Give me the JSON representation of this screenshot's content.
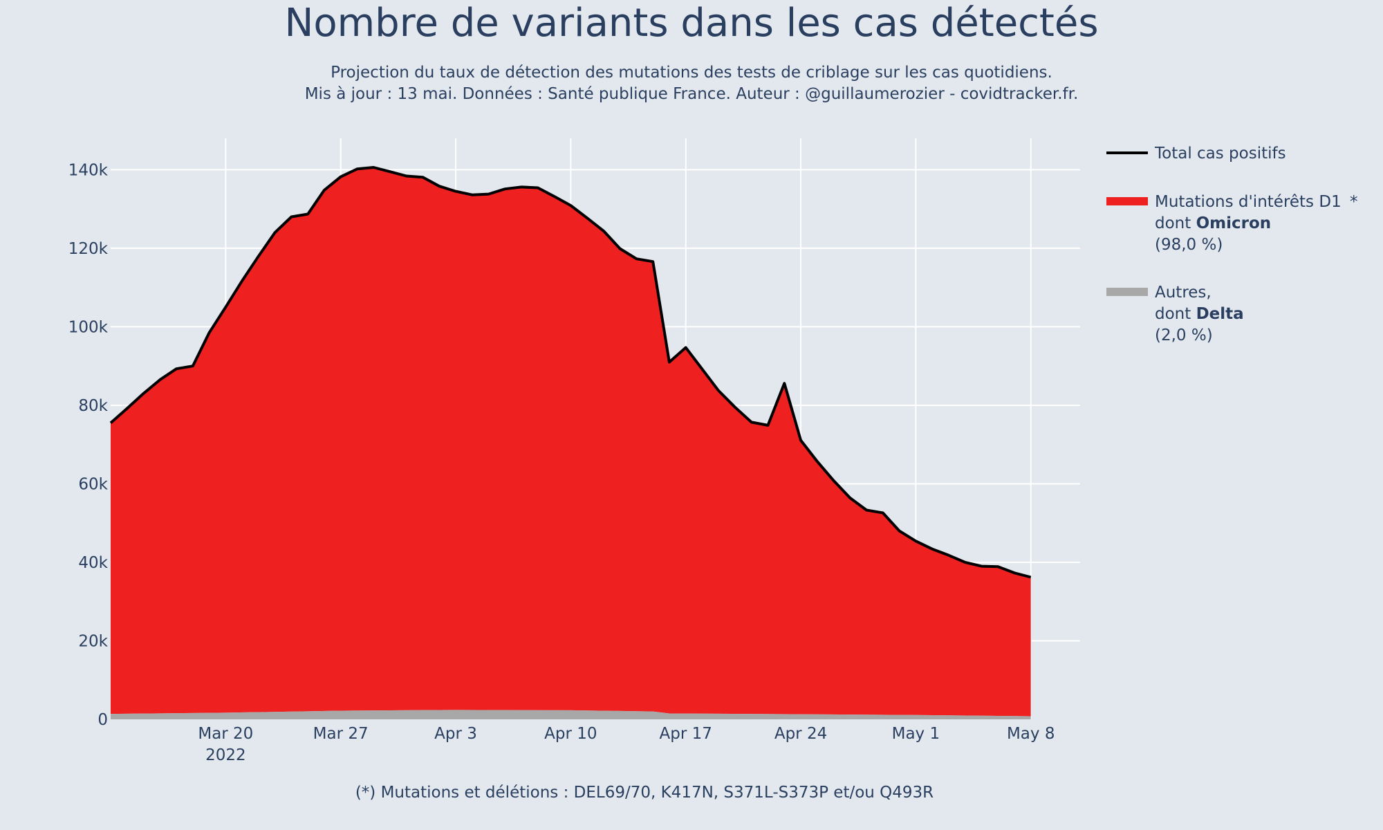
{
  "chart_data": {
    "type": "area",
    "title": "Nombre de variants dans les cas détectés",
    "subtitle": [
      "Projection du taux de détection des mutations des tests de criblage sur les cas quotidiens.",
      "Mis à jour : 13 mai. Données : Santé publique France. Auteur : @guillaumerozier - covidtracker.fr."
    ],
    "footnote": "(*) Mutations et délétions : DEL69/70, K417N, S371L-S373P et/ou Q493R",
    "xaxis": {
      "range": [
        "2022-03-13",
        "2022-05-11"
      ],
      "ticks": [
        {
          "date": "2022-03-20",
          "label": "Mar 20",
          "sublabel": "2022"
        },
        {
          "date": "2022-03-27",
          "label": "Mar 27",
          "sublabel": ""
        },
        {
          "date": "2022-04-03",
          "label": "Apr 3",
          "sublabel": ""
        },
        {
          "date": "2022-04-10",
          "label": "Apr 10",
          "sublabel": ""
        },
        {
          "date": "2022-04-17",
          "label": "Apr 17",
          "sublabel": ""
        },
        {
          "date": "2022-04-24",
          "label": "Apr 24",
          "sublabel": ""
        },
        {
          "date": "2022-05-01",
          "label": "May 1",
          "sublabel": ""
        },
        {
          "date": "2022-05-08",
          "label": "May 8",
          "sublabel": ""
        }
      ]
    },
    "yaxis": {
      "range": [
        0,
        148000
      ],
      "ticks": [
        {
          "value": 0,
          "label": "0"
        },
        {
          "value": 20000,
          "label": "20k"
        },
        {
          "value": 40000,
          "label": "40k"
        },
        {
          "value": 60000,
          "label": "60k"
        },
        {
          "value": 80000,
          "label": "80k"
        },
        {
          "value": 100000,
          "label": "100k"
        },
        {
          "value": 120000,
          "label": "120k"
        },
        {
          "value": 140000,
          "label": "140k"
        }
      ]
    },
    "grid": true,
    "legend_position": "right",
    "legend": [
      {
        "key": "total",
        "color": "#000000",
        "symbol": "line",
        "lines": [
          [
            {
              "t": "Total cas positifs",
              "b": false
            }
          ]
        ]
      },
      {
        "key": "omicron",
        "color": "#ef2020",
        "symbol": "bar",
        "asterisk": "*",
        "lines": [
          [
            {
              "t": "Mutations d'intérêts D1",
              "b": false
            }
          ],
          [
            {
              "t": "dont ",
              "b": false
            },
            {
              "t": "Omicron",
              "b": true
            }
          ],
          [
            {
              "t": " (98,0 %)",
              "b": false
            }
          ]
        ]
      },
      {
        "key": "autres",
        "color": "#a8a8a8",
        "symbol": "bar",
        "lines": [
          [
            {
              "t": "Autres,",
              "b": false
            }
          ],
          [
            {
              "t": "dont ",
              "b": false
            },
            {
              "t": "Delta",
              "b": true
            }
          ],
          [
            {
              "t": " (2,0 %)",
              "b": false
            }
          ]
        ]
      }
    ],
    "series": [
      {
        "key": "total",
        "name": "Total cas positifs",
        "color": "#000000",
        "points": [
          [
            "2022-03-13",
            75500
          ],
          [
            "2022-03-14",
            79200
          ],
          [
            "2022-03-15",
            83000
          ],
          [
            "2022-03-16",
            86500
          ],
          [
            "2022-03-17",
            89300
          ],
          [
            "2022-03-18",
            90000
          ],
          [
            "2022-03-19",
            98500
          ],
          [
            "2022-03-20",
            105000
          ],
          [
            "2022-03-21",
            111700
          ],
          [
            "2022-03-22",
            118000
          ],
          [
            "2022-03-23",
            124000
          ],
          [
            "2022-03-24",
            128000
          ],
          [
            "2022-03-25",
            128700
          ],
          [
            "2022-03-26",
            134800
          ],
          [
            "2022-03-27",
            138200
          ],
          [
            "2022-03-28",
            140200
          ],
          [
            "2022-03-29",
            140600
          ],
          [
            "2022-03-30",
            139500
          ],
          [
            "2022-03-31",
            138400
          ],
          [
            "2022-04-01",
            138100
          ],
          [
            "2022-04-02",
            135800
          ],
          [
            "2022-04-03",
            134500
          ],
          [
            "2022-04-04",
            133600
          ],
          [
            "2022-04-05",
            133800
          ],
          [
            "2022-04-06",
            135100
          ],
          [
            "2022-04-07",
            135600
          ],
          [
            "2022-04-08",
            135400
          ],
          [
            "2022-04-09",
            133200
          ],
          [
            "2022-04-10",
            130900
          ],
          [
            "2022-04-11",
            127700
          ],
          [
            "2022-04-12",
            124400
          ],
          [
            "2022-04-13",
            119900
          ],
          [
            "2022-04-14",
            117300
          ],
          [
            "2022-04-15",
            116600
          ],
          [
            "2022-04-16",
            91000
          ],
          [
            "2022-04-17",
            94700
          ],
          [
            "2022-04-18",
            89200
          ],
          [
            "2022-04-19",
            83700
          ],
          [
            "2022-04-20",
            79500
          ],
          [
            "2022-04-21",
            75700
          ],
          [
            "2022-04-22",
            74900
          ],
          [
            "2022-04-23",
            85600
          ],
          [
            "2022-04-24",
            71100
          ],
          [
            "2022-04-25",
            65700
          ],
          [
            "2022-04-26",
            60800
          ],
          [
            "2022-04-27",
            56400
          ],
          [
            "2022-04-28",
            53300
          ],
          [
            "2022-04-29",
            52600
          ],
          [
            "2022-04-30",
            48000
          ],
          [
            "2022-05-01",
            45400
          ],
          [
            "2022-05-02",
            43400
          ],
          [
            "2022-05-03",
            41800
          ],
          [
            "2022-05-04",
            40000
          ],
          [
            "2022-05-05",
            39000
          ],
          [
            "2022-05-06",
            38900
          ],
          [
            "2022-05-07",
            37300
          ],
          [
            "2022-05-08",
            36200
          ]
        ]
      },
      {
        "key": "autres",
        "name": "Autres, dont Delta",
        "color": "#a8a8a8",
        "points": [
          [
            "2022-03-13",
            1400
          ],
          [
            "2022-03-20",
            1700
          ],
          [
            "2022-03-27",
            2200
          ],
          [
            "2022-04-03",
            2400
          ],
          [
            "2022-04-10",
            2300
          ],
          [
            "2022-04-15",
            2000
          ],
          [
            "2022-04-16",
            1500
          ],
          [
            "2022-04-24",
            1300
          ],
          [
            "2022-05-01",
            1100
          ],
          [
            "2022-05-08",
            800
          ]
        ]
      }
    ],
    "fill_between": {
      "key": "omicron",
      "name": "Mutations d'intérêts D1 dont Omicron",
      "color": "#ef2020",
      "upper": "total",
      "lower": "autres"
    }
  }
}
